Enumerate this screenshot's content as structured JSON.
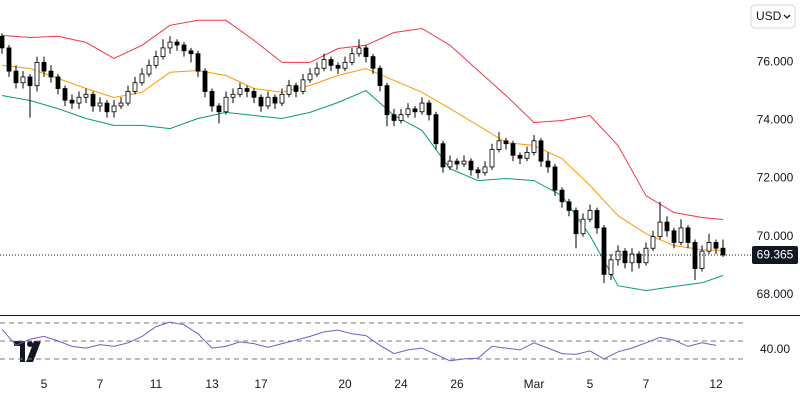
{
  "chart_data": {
    "type": "candlestick",
    "currency": "USD",
    "up_color": "#ffffff",
    "down_color": "#000000",
    "wick_color": "#000000",
    "ylim": [
      67.3,
      78.15
    ],
    "yticks": [
      {
        "value": 68,
        "label": "68.000"
      },
      {
        "value": 70,
        "label": "70.000"
      },
      {
        "value": 72,
        "label": "72.000"
      },
      {
        "value": 74,
        "label": "74.000"
      },
      {
        "value": 76,
        "label": "76.000"
      }
    ],
    "grid": false,
    "last_price": 69.365,
    "categories": [
      null,
      null,
      null,
      null,
      null,
      null,
      "5",
      null,
      null,
      null,
      null,
      null,
      null,
      null,
      "7",
      null,
      null,
      null,
      null,
      null,
      null,
      null,
      "11",
      null,
      null,
      null,
      null,
      null,
      null,
      null,
      "13",
      null,
      null,
      null,
      null,
      null,
      null,
      "17",
      null,
      null,
      null,
      null,
      null,
      null,
      null,
      null,
      null,
      null,
      null,
      "20",
      null,
      null,
      null,
      null,
      null,
      null,
      null,
      "24",
      null,
      null,
      null,
      null,
      null,
      null,
      null,
      "26",
      null,
      null,
      null,
      null,
      null,
      null,
      null,
      null,
      null,
      null,
      "Mar",
      null,
      null,
      null,
      null,
      null,
      null,
      null,
      "5",
      null,
      null,
      null,
      null,
      null,
      null,
      null,
      "7",
      null,
      null,
      null,
      null,
      null,
      null,
      null,
      null,
      null,
      "12",
      null
    ],
    "ohlc": [
      [
        76.9,
        77.0,
        76.3,
        76.5
      ],
      [
        76.5,
        76.6,
        75.5,
        75.7
      ],
      [
        75.7,
        75.9,
        75.1,
        75.3
      ],
      [
        75.3,
        75.7,
        75.1,
        75.5
      ],
      [
        75.5,
        75.6,
        74.1,
        75.2
      ],
      [
        75.2,
        76.2,
        75.0,
        76.0
      ],
      [
        76.0,
        76.2,
        75.5,
        75.7
      ],
      [
        75.7,
        75.9,
        75.3,
        75.5
      ],
      [
        75.5,
        75.6,
        74.9,
        75.1
      ],
      [
        75.1,
        75.2,
        74.5,
        74.7
      ],
      [
        74.7,
        74.9,
        74.4,
        74.6
      ],
      [
        74.6,
        75.0,
        74.4,
        74.8
      ],
      [
        74.8,
        75.1,
        74.6,
        74.9
      ],
      [
        74.9,
        75.0,
        74.3,
        74.5
      ],
      [
        74.5,
        74.8,
        74.3,
        74.6
      ],
      [
        74.6,
        74.7,
        74.1,
        74.3
      ],
      [
        74.3,
        74.7,
        74.1,
        74.5
      ],
      [
        74.5,
        74.8,
        74.4,
        74.6
      ],
      [
        74.6,
        75.2,
        74.5,
        75.0
      ],
      [
        75.0,
        75.5,
        74.9,
        75.3
      ],
      [
        75.3,
        75.8,
        75.2,
        75.6
      ],
      [
        75.6,
        76.1,
        75.5,
        75.9
      ],
      [
        75.9,
        76.4,
        75.8,
        76.2
      ],
      [
        76.2,
        76.8,
        76.1,
        76.5
      ],
      [
        76.5,
        76.9,
        76.3,
        76.7
      ],
      [
        76.7,
        76.8,
        76.4,
        76.6
      ],
      [
        76.6,
        76.7,
        76.2,
        76.4
      ],
      [
        76.4,
        76.5,
        76.0,
        76.3
      ],
      [
        76.3,
        76.4,
        75.5,
        75.7
      ],
      [
        75.7,
        75.8,
        74.8,
        75.0
      ],
      [
        75.0,
        75.1,
        74.3,
        74.5
      ],
      [
        74.5,
        74.6,
        73.9,
        74.3
      ],
      [
        74.3,
        75.0,
        74.2,
        74.8
      ],
      [
        74.8,
        75.1,
        74.6,
        74.9
      ],
      [
        74.9,
        75.3,
        74.8,
        75.1
      ],
      [
        75.1,
        75.2,
        74.8,
        75.0
      ],
      [
        75.0,
        75.1,
        74.6,
        74.8
      ],
      [
        74.8,
        74.9,
        74.3,
        74.5
      ],
      [
        74.5,
        75.0,
        74.4,
        74.8
      ],
      [
        74.8,
        74.9,
        74.4,
        74.6
      ],
      [
        74.6,
        75.1,
        74.5,
        74.9
      ],
      [
        74.9,
        75.4,
        74.8,
        75.2
      ],
      [
        75.2,
        75.3,
        74.8,
        75.0
      ],
      [
        75.0,
        75.6,
        74.9,
        75.4
      ],
      [
        75.4,
        75.8,
        75.3,
        75.6
      ],
      [
        75.6,
        76.0,
        75.5,
        75.8
      ],
      [
        75.8,
        76.3,
        75.7,
        76.1
      ],
      [
        76.1,
        76.2,
        75.7,
        75.9
      ],
      [
        75.9,
        76.0,
        75.6,
        75.8
      ],
      [
        75.8,
        76.2,
        75.7,
        76.0
      ],
      [
        76.0,
        76.5,
        75.9,
        76.3
      ],
      [
        76.3,
        76.8,
        76.2,
        76.5
      ],
      [
        76.5,
        76.6,
        76.0,
        76.2
      ],
      [
        76.2,
        76.3,
        75.6,
        75.8
      ],
      [
        75.8,
        75.9,
        75.0,
        75.2
      ],
      [
        75.2,
        75.3,
        73.8,
        74.2
      ],
      [
        74.2,
        74.4,
        73.8,
        74.0
      ],
      [
        74.0,
        74.4,
        73.9,
        74.2
      ],
      [
        74.2,
        74.6,
        74.1,
        74.4
      ],
      [
        74.4,
        74.5,
        74.1,
        74.3
      ],
      [
        74.3,
        74.8,
        74.2,
        74.6
      ],
      [
        74.6,
        74.7,
        74.0,
        74.2
      ],
      [
        74.2,
        74.3,
        73.0,
        73.2
      ],
      [
        73.2,
        73.3,
        72.2,
        72.4
      ],
      [
        72.4,
        72.8,
        72.3,
        72.6
      ],
      [
        72.6,
        72.7,
        72.3,
        72.5
      ],
      [
        72.5,
        72.8,
        72.4,
        72.6
      ],
      [
        72.6,
        72.7,
        72.1,
        72.3
      ],
      [
        72.3,
        72.4,
        72.0,
        72.2
      ],
      [
        72.2,
        72.6,
        72.1,
        72.4
      ],
      [
        72.4,
        73.2,
        72.3,
        73.0
      ],
      [
        73.0,
        73.6,
        72.9,
        73.3
      ],
      [
        73.3,
        73.4,
        73.0,
        73.2
      ],
      [
        73.2,
        73.3,
        72.6,
        72.8
      ],
      [
        72.8,
        72.9,
        72.5,
        72.7
      ],
      [
        72.7,
        73.1,
        72.6,
        72.9
      ],
      [
        72.9,
        73.5,
        72.8,
        73.3
      ],
      [
        73.3,
        73.4,
        72.4,
        72.6
      ],
      [
        72.6,
        72.9,
        72.2,
        72.4
      ],
      [
        72.4,
        72.5,
        71.4,
        71.6
      ],
      [
        71.6,
        71.7,
        71.0,
        71.2
      ],
      [
        71.2,
        71.3,
        70.7,
        70.9
      ],
      [
        70.9,
        71.0,
        69.6,
        70.1
      ],
      [
        70.1,
        70.8,
        70.0,
        70.6
      ],
      [
        70.6,
        71.1,
        70.5,
        70.9
      ],
      [
        70.9,
        71.0,
        70.1,
        70.3
      ],
      [
        70.3,
        70.4,
        68.4,
        68.7
      ],
      [
        68.7,
        69.4,
        68.5,
        69.2
      ],
      [
        69.2,
        69.7,
        69.0,
        69.5
      ],
      [
        69.5,
        69.6,
        68.9,
        69.1
      ],
      [
        69.1,
        69.6,
        68.8,
        69.4
      ],
      [
        69.4,
        69.5,
        68.9,
        69.1
      ],
      [
        69.1,
        69.8,
        69.0,
        69.6
      ],
      [
        69.6,
        70.2,
        69.5,
        70.0
      ],
      [
        70.0,
        71.2,
        69.9,
        70.5
      ],
      [
        70.5,
        70.7,
        70.0,
        70.2
      ],
      [
        70.2,
        70.3,
        69.6,
        69.8
      ],
      [
        69.8,
        70.6,
        69.7,
        70.3
      ],
      [
        70.3,
        70.4,
        69.6,
        69.8
      ],
      [
        69.8,
        69.9,
        68.5,
        68.9
      ],
      [
        68.9,
        69.7,
        68.8,
        69.5
      ],
      [
        69.5,
        70.1,
        69.4,
        69.8
      ],
      [
        69.8,
        69.9,
        69.4,
        69.6
      ],
      [
        69.6,
        69.9,
        69.3,
        69.365
      ]
    ],
    "bands": {
      "x": [
        0,
        4,
        8,
        12,
        16,
        20,
        24,
        28,
        32,
        36,
        40,
        44,
        48,
        52,
        56,
        60,
        64,
        68,
        72,
        76,
        80,
        84,
        88,
        92,
        96,
        100,
        103
      ],
      "upper": {
        "color": "#f23645",
        "values": [
          76.93,
          76.86,
          76.9,
          76.69,
          76.14,
          76.59,
          77.28,
          77.45,
          77.45,
          76.76,
          76.0,
          76.0,
          76.48,
          76.59,
          77.03,
          77.17,
          76.59,
          75.72,
          74.86,
          73.93,
          74.0,
          74.17,
          73.14,
          71.41,
          70.83,
          70.66,
          70.59
        ]
      },
      "middle": {
        "color": "#ff9800",
        "values": [
          75.9,
          75.79,
          75.45,
          75.1,
          74.79,
          74.97,
          75.66,
          75.72,
          75.55,
          75.1,
          74.97,
          75.21,
          75.55,
          75.79,
          75.38,
          74.97,
          74.41,
          73.83,
          73.24,
          73.14,
          72.69,
          71.76,
          70.72,
          70.1,
          69.69,
          69.55,
          69.52
        ]
      },
      "lower": {
        "color": "#089981",
        "values": [
          74.86,
          74.69,
          74.41,
          74.07,
          73.83,
          73.83,
          73.72,
          74.07,
          74.28,
          74.17,
          74.07,
          74.28,
          74.62,
          75.03,
          74.17,
          73.66,
          72.34,
          71.93,
          72.0,
          71.93,
          71.41,
          70.03,
          68.31,
          68.14,
          68.28,
          68.41,
          68.66
        ]
      }
    },
    "rsi": {
      "color": "#7e57c2",
      "ylim": [
        15.5,
        75.5
      ],
      "yticks": [
        {
          "value": 40,
          "label": "40.00"
        }
      ],
      "levels": [
        30,
        50,
        70
      ],
      "x": [
        0,
        2,
        4,
        6,
        8,
        10,
        12,
        14,
        16,
        18,
        20,
        22,
        24,
        26,
        28,
        30,
        32,
        34,
        36,
        38,
        40,
        42,
        44,
        46,
        48,
        50,
        52,
        54,
        56,
        58,
        60,
        62,
        64,
        66,
        68,
        70,
        72,
        74,
        76,
        78,
        80,
        82,
        84,
        86,
        88,
        90,
        92,
        94,
        96,
        98,
        100,
        102
      ],
      "values": [
        63,
        45,
        52,
        55,
        50,
        44,
        42,
        46,
        44,
        48,
        55,
        66,
        71,
        68,
        58,
        42,
        44,
        49,
        47,
        43,
        47,
        51,
        55,
        60,
        62,
        58,
        56,
        45,
        36,
        40,
        42,
        35,
        28,
        30,
        31,
        44,
        42,
        40,
        48,
        42,
        36,
        35,
        39,
        30,
        38,
        42,
        48,
        54,
        51,
        44,
        48,
        45
      ]
    }
  }
}
